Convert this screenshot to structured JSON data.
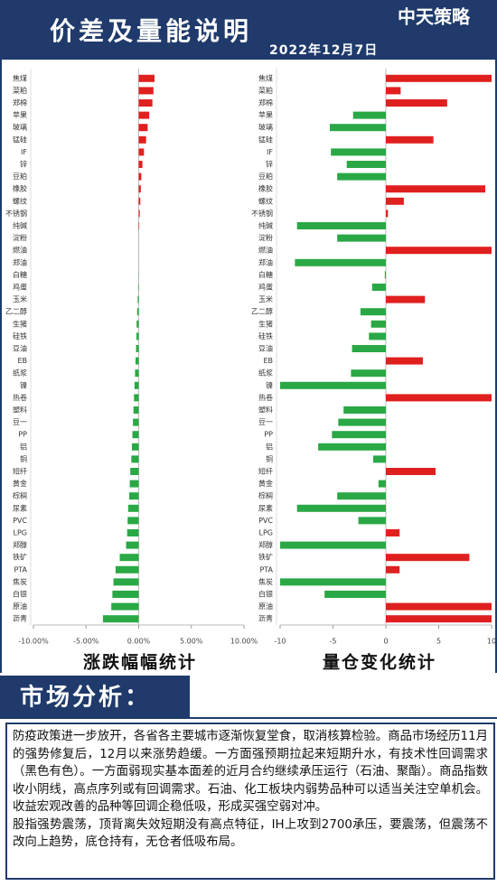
{
  "header": {
    "title": "价差及量能说明",
    "logo": "中天策略",
    "date": "2022年12月7日"
  },
  "chart_data": [
    {
      "type": "bar",
      "orientation": "horizontal",
      "title": "涨跌幅幅统计",
      "categories": [
        "焦煤",
        "菜粕",
        "郑棉",
        "苹果",
        "玻璃",
        "锰硅",
        "IF",
        "锌",
        "豆粕",
        "橡胶",
        "螺纹",
        "不锈钢",
        "纯碱",
        "淀粉",
        "燃油",
        "郑油",
        "白糖",
        "鸡蛋",
        "玉米",
        "乙二醇",
        "生猪",
        "硅铁",
        "豆油",
        "EB",
        "纸浆",
        "镍",
        "热卷",
        "塑料",
        "豆一",
        "PP",
        "铝",
        "铜",
        "短纤",
        "黄金",
        "棕榈",
        "尿素",
        "PVC",
        "LPG",
        "郑醇",
        "铁矿",
        "PTA",
        "焦炭",
        "白银",
        "原油",
        "沥青"
      ],
      "values": [
        1.5,
        1.4,
        1.3,
        1.0,
        0.85,
        0.7,
        0.5,
        0.35,
        0.25,
        0.2,
        0.15,
        0.1,
        0.05,
        0,
        0,
        0,
        -0.02,
        -0.05,
        -0.1,
        -0.15,
        -0.2,
        -0.22,
        -0.25,
        -0.3,
        -0.35,
        -0.4,
        -0.45,
        -0.5,
        -0.55,
        -0.6,
        -0.65,
        -0.7,
        -0.8,
        -0.85,
        -0.9,
        -1.0,
        -1.05,
        -1.1,
        -1.2,
        -1.8,
        -2.2,
        -2.4,
        -2.5,
        -2.6,
        -3.4
      ],
      "positive_color": "#e0201f",
      "negative_color": "#2aa845",
      "xlim": [
        -10,
        10
      ],
      "xticks": [
        {
          "value": -10,
          "label": "-10.00%"
        },
        {
          "value": -5,
          "label": "-5.00%"
        },
        {
          "value": 0,
          "label": "0.00%"
        },
        {
          "value": 5,
          "label": "5.00%"
        },
        {
          "value": 10,
          "label": "10.00%"
        }
      ]
    },
    {
      "type": "bar",
      "orientation": "horizontal",
      "title": "量仓变化统计",
      "categories": [
        "焦煤",
        "菜粕",
        "郑棉",
        "苹果",
        "玻璃",
        "锰硅",
        "IF",
        "锌",
        "豆粕",
        "橡胶",
        "螺纹",
        "不锈钢",
        "纯碱",
        "淀粉",
        "燃油",
        "郑油",
        "白糖",
        "鸡蛋",
        "玉米",
        "乙二醇",
        "生猪",
        "硅铁",
        "豆油",
        "EB",
        "纸浆",
        "镍",
        "热卷",
        "塑料",
        "豆一",
        "PP",
        "铝",
        "铜",
        "短纤",
        "黄金",
        "棕榈",
        "尿素",
        "PVC",
        "LPG",
        "郑醇",
        "铁矿",
        "PTA",
        "焦炭",
        "白银",
        "原油",
        "沥青"
      ],
      "values": [
        10,
        1.4,
        5.8,
        -3.1,
        -5.3,
        4.5,
        -5.2,
        -3.7,
        -4.6,
        9.4,
        1.7,
        0.2,
        -8.4,
        -4.6,
        10,
        -8.6,
        -0.1,
        -1.3,
        3.7,
        -2.4,
        -1.4,
        -1.6,
        -3.2,
        3.5,
        -3.3,
        -10,
        10,
        -4,
        -4.5,
        -5.1,
        -6.4,
        -1.2,
        4.7,
        -0.7,
        -4.6,
        -8.4,
        -2.6,
        1.3,
        -10,
        7.9,
        1.3,
        -10,
        -5.8,
        10,
        10
      ],
      "positive_color": "#e0201f",
      "negative_color": "#2aa845",
      "xlim": [
        -10,
        10
      ],
      "xticks": [
        -10,
        -5,
        0,
        5,
        10
      ]
    }
  ],
  "analysis": {
    "heading": "市场分析：",
    "paragraphs": [
      "防疫政策进一步放开，各省各主要城市逐渐恢复堂食，取消核算检验。商品市场经历11月的强势修复后，12月以来涨势趋缓。一方面强预期拉起来短期升水，有技术性回调需求（黑色有色）。一方面弱现实基本面差的近月合约继续承压运行（石油、聚酯）。商品指数收小阴线，高点序列或有回调需求。石油、化工板块内弱势品种可以适当关注空单机会。收益宏观改善的品种等回调企稳低吸，形成买强空弱对冲。",
      "股指强势震荡，顶背离失效短期没有高点特征，IH上攻到2700承压，要震荡，但震荡不改向上趋势，底仓持有，无仓者低吸布局。"
    ]
  }
}
